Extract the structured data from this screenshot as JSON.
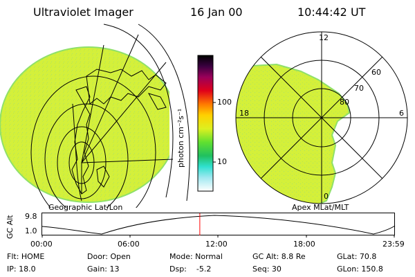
{
  "header": {
    "title": "Ultraviolet Imager",
    "date": "16 Jan 00",
    "time": "10:44:42 UT"
  },
  "colorbar": {
    "unit_label": "photon cm⁻²s⁻¹",
    "ticks": [
      "100",
      "10"
    ]
  },
  "geo_panel": {
    "label": "Geographic Lat/Lon"
  },
  "polar_panel": {
    "label": "Apex MLat/MLT",
    "mlt_labels": [
      "12",
      "18",
      "6",
      "0"
    ],
    "lat_labels": [
      "60",
      "70",
      "80"
    ]
  },
  "orbit": {
    "ylabel": "GC Alt",
    "ytick_top": "9.8",
    "ytick_bottom": "1.0",
    "xticks": [
      "00:00",
      "06:00",
      "12:00",
      "18:00",
      "23:59"
    ],
    "current_marker_hours": 10.745
  },
  "info": {
    "filter": "Flt: HOME",
    "door": "Door: Open",
    "mode": "Mode: Normal",
    "gc_alt": "GC Alt: 8.8 Re",
    "glat": "GLat:  70.8",
    "ip": "IP: 18.0",
    "gain": "Gain: 13",
    "dsp": "Dsp:    -5.2",
    "seq": "Seq: 30",
    "glon": "GLon: 150.8"
  },
  "colors": {
    "image_fill": "#d4f03a",
    "image_edge": "#8fe06a",
    "marker": "#ff0000"
  }
}
